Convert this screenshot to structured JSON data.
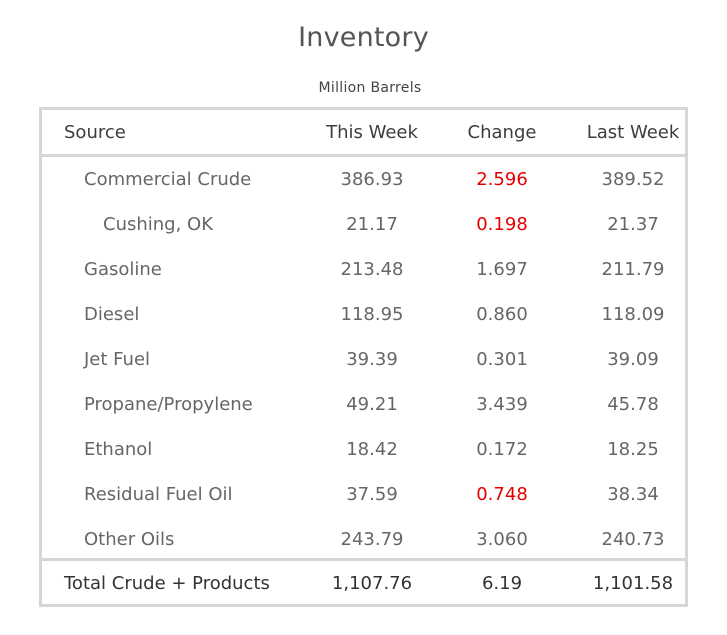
{
  "title": "Inventory",
  "subtitle": "Million Barrels",
  "colors": {
    "highlight": "#e60000",
    "border": "#d6d6d6",
    "text": "#666666"
  },
  "headers": {
    "source": "Source",
    "this_week": "This Week",
    "change": "Change",
    "last_week": "Last Week"
  },
  "rows": [
    {
      "source": "Commercial Crude",
      "this_week": "386.93",
      "change": "2.596",
      "last_week": "389.52",
      "highlight": true,
      "indent": 1
    },
    {
      "source": "Cushing, OK",
      "this_week": "21.17",
      "change": "0.198",
      "last_week": "21.37",
      "highlight": true,
      "indent": 2
    },
    {
      "source": "Gasoline",
      "this_week": "213.48",
      "change": "1.697",
      "last_week": "211.79",
      "highlight": false,
      "indent": 1
    },
    {
      "source": "Diesel",
      "this_week": "118.95",
      "change": "0.860",
      "last_week": "118.09",
      "highlight": false,
      "indent": 1
    },
    {
      "source": "Jet Fuel",
      "this_week": "39.39",
      "change": "0.301",
      "last_week": "39.09",
      "highlight": false,
      "indent": 1
    },
    {
      "source": "Propane/Propylene",
      "this_week": "49.21",
      "change": "3.439",
      "last_week": "45.78",
      "highlight": false,
      "indent": 1
    },
    {
      "source": "Ethanol",
      "this_week": "18.42",
      "change": "0.172",
      "last_week": "18.25",
      "highlight": false,
      "indent": 1
    },
    {
      "source": "Residual Fuel Oil",
      "this_week": "37.59",
      "change": "0.748",
      "last_week": "38.34",
      "highlight": true,
      "indent": 1
    },
    {
      "source": "Other Oils",
      "this_week": "243.79",
      "change": "3.060",
      "last_week": "240.73",
      "highlight": false,
      "indent": 1
    }
  ],
  "total": {
    "source": "Total Crude + Products",
    "this_week": "1,107.76",
    "change": "6.19",
    "last_week": "1,101.58"
  }
}
